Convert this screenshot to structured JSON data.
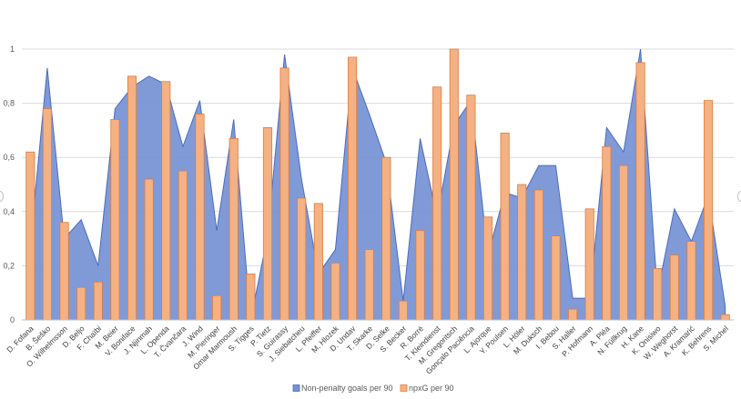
{
  "chart_data": {
    "type": "bar",
    "title": "",
    "xlabel": "",
    "ylabel": "",
    "ylim": [
      0,
      1
    ],
    "yticks": [
      "0",
      "0,2",
      "0,4",
      "0,6",
      "0,8",
      "1"
    ],
    "categories": [
      "D. Fofana",
      "B. Šeško",
      "O. Wilhelmsson",
      "D. Beljo",
      "F. Chaïbi",
      "M. Beier",
      "V. Boniface",
      "J. Njinmah",
      "L. Openda",
      "T. Čvančara",
      "J. Wind",
      "M. Pieringer",
      "Omar Marmoush",
      "S. Tigges",
      "P. Tietz",
      "S. Guirassy",
      "J. Siebatcheu",
      "L. Pfeiffer",
      "M. Hlozek",
      "D. Undav",
      "T. Skarke",
      "D. Selke",
      "S. Becker",
      "R. Borré",
      "T. Kleindienst",
      "M. Gregoritsch",
      "Gonçalo Paciência",
      "L. Ajorque",
      "Y. Poulsen",
      "L. Höler",
      "M. Duksch",
      "I. Bebou",
      "S. Haller",
      "P. Hofmann",
      "A. Pléa",
      "N. Füllkrug",
      "H. Kane",
      "K. Onisiwo",
      "W. Weghorst",
      "A. Kramarić",
      "K. Behrens",
      "S. Michel"
    ],
    "series": [
      {
        "name": "Non-penalty goals per 90",
        "type": "area",
        "color": "#7591d4",
        "values": [
          0.28,
          0.93,
          0.3,
          0.37,
          0.2,
          0.78,
          0.86,
          0.9,
          0.87,
          0.64,
          0.81,
          0.33,
          0.74,
          0.0,
          0.31,
          0.98,
          0.52,
          0.17,
          0.26,
          0.93,
          0.76,
          0.58,
          0.07,
          0.67,
          0.38,
          0.72,
          0.81,
          0.24,
          0.47,
          0.45,
          0.57,
          0.57,
          0.08,
          0.08,
          0.71,
          0.62,
          1.0,
          0.1,
          0.41,
          0.29,
          0.46,
          0.05
        ]
      },
      {
        "name": "npxG per 90",
        "type": "bar",
        "color": "#f4b183",
        "edge": "#e07b3c",
        "values": [
          0.62,
          0.78,
          0.36,
          0.12,
          0.14,
          0.74,
          0.9,
          0.52,
          0.88,
          0.55,
          0.76,
          0.09,
          0.67,
          0.17,
          0.71,
          0.93,
          0.45,
          0.43,
          0.21,
          0.97,
          0.26,
          0.6,
          0.07,
          0.33,
          0.86,
          1.0,
          0.83,
          0.38,
          0.69,
          0.5,
          0.48,
          0.31,
          0.04,
          0.41,
          0.64,
          0.57,
          0.95,
          0.19,
          0.24,
          0.29,
          0.81,
          0.02
        ]
      }
    ],
    "legend": "bottom"
  }
}
